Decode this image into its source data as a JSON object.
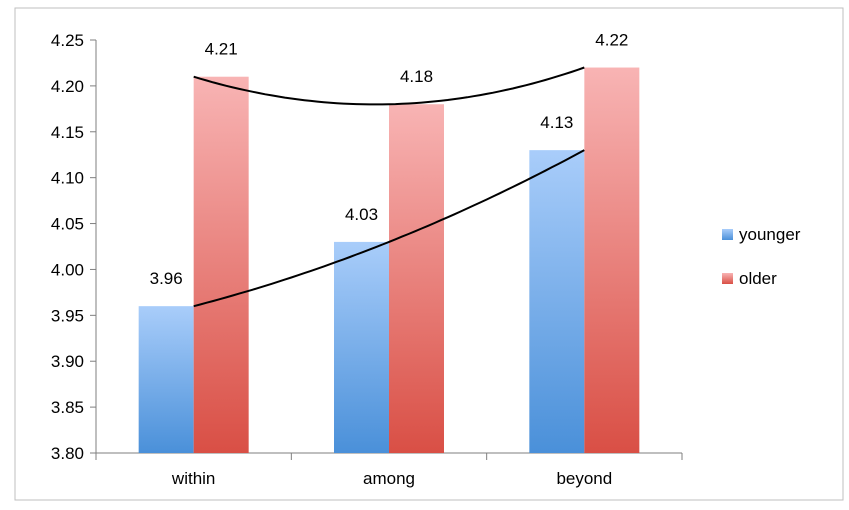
{
  "chart_data": {
    "type": "bar",
    "categories": [
      "within",
      "among",
      "beyond"
    ],
    "series": [
      {
        "name": "younger",
        "values": [
          3.96,
          4.03,
          4.13
        ],
        "color": "#5b9bd5"
      },
      {
        "name": "older",
        "values": [
          4.21,
          4.18,
          4.22
        ],
        "color": "#e06666"
      }
    ],
    "data_labels": {
      "younger": [
        "3.96",
        "4.03",
        "4.13"
      ],
      "older": [
        "4.21",
        "4.18",
        "4.22"
      ]
    },
    "ylim": [
      3.8,
      4.25
    ],
    "yticks": [
      "4.25",
      "4.20",
      "4.15",
      "4.10",
      "4.05",
      "4.00",
      "3.95",
      "3.90",
      "3.85",
      "3.80"
    ],
    "trendlines": "quadratic curve per series (black)",
    "grid": false,
    "legend_position": "right",
    "title": "",
    "xlabel": "",
    "ylabel": ""
  }
}
